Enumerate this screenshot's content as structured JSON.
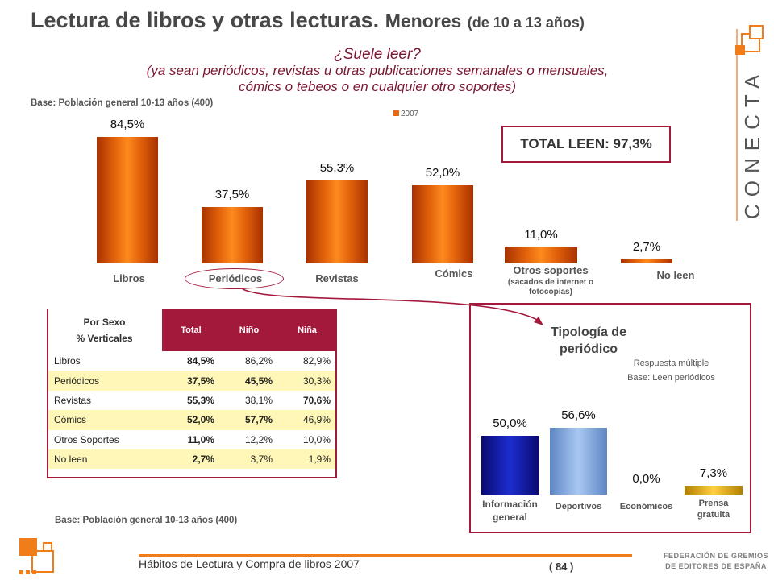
{
  "title": {
    "main": "Lectura de libros y otras lecturas.",
    "sub": "Menores",
    "age": "(de 10 a 13 años)"
  },
  "question": {
    "line1": "¿Suele leer?",
    "line2": "(ya sean periódicos, revistas u otras publicaciones semanales o mensuales,",
    "line3": "cómics o tebeos o en cualquier otro soportes)"
  },
  "base_top": "Base: Población general 10-13 años (400)",
  "base_bottom": "Base: Población general 10-13 años (400)",
  "legend": "2007",
  "total_leen": "TOTAL LEEN: 97,3%",
  "brand": "CONECTA",
  "chart_data": [
    {
      "type": "bar",
      "series": [
        {
          "name": "2007",
          "values": [
            84.5,
            37.5,
            55.3,
            52.0,
            11.0,
            2.7
          ]
        }
      ],
      "categories": [
        "Libros",
        "Periódicos",
        "Revistas",
        "Cómics",
        "Otros soportes",
        "No leen"
      ],
      "category_notes": {
        "Otros soportes": "(sacados de internet o fotocopias)"
      },
      "value_labels": [
        "84,5%",
        "37,5%",
        "55,3%",
        "52,0%",
        "11,0%",
        "2,7%"
      ],
      "ylim": [
        0,
        100
      ],
      "grid": false,
      "legend_position": "top-right",
      "colors": {
        "Libros": "#e0600a",
        "Periódicos": "#e0600a",
        "Revistas": "#e0600a",
        "Cómics": "#e0600a",
        "Otros soportes": "#e0600a",
        "No leen": "#e0600a"
      }
    },
    {
      "type": "bar",
      "title": "Tipología de periódico",
      "notes": [
        "Respuesta múltiple",
        "Base: Leen periódicos"
      ],
      "categories": [
        "Información general",
        "Deportivos",
        "Económicos",
        "Prensa gratuita"
      ],
      "series": [
        {
          "values": [
            50.0,
            56.6,
            0.0,
            7.3
          ]
        }
      ],
      "value_labels": [
        "50,0%",
        "56,6%",
        "0,0%",
        "7,3%"
      ],
      "ylim": [
        0,
        100
      ],
      "colors": [
        "#1020b0",
        "#8ab4e8",
        "#b8b8b8",
        "#f0c020"
      ]
    },
    {
      "type": "table",
      "header": {
        "row_title": "Por Sexo",
        "row_subtitle": "% Verticales",
        "columns": [
          "Total",
          "Niño",
          "Niña"
        ]
      },
      "rows": [
        {
          "label": "Libros",
          "cells": [
            "84,5%",
            "86,2%",
            "82,9%"
          ]
        },
        {
          "label": "Periódicos",
          "cells": [
            "37,5%",
            "45,5%",
            "30,3%"
          ]
        },
        {
          "label": "Revistas",
          "cells": [
            "55,3%",
            "38,1%",
            "70,6%"
          ]
        },
        {
          "label": "Cómics",
          "cells": [
            "52,0%",
            "57,7%",
            "46,9%"
          ]
        },
        {
          "label": "Otros Soportes",
          "cells": [
            "11,0%",
            "12,2%",
            "10,0%"
          ]
        },
        {
          "label": "No leen",
          "cells": [
            "2,7%",
            "3,7%",
            "1,9%"
          ]
        }
      ]
    }
  ],
  "footer": {
    "text": "Hábitos de Lectura y Compra de libros 2007",
    "page": "( 84 )",
    "federation_line1": "FEDERACIÓN DE GREMIOS",
    "federation_line2": "DE EDITORES DE ESPAÑA"
  },
  "colors": {
    "accent": "#a3193c",
    "bar": "#e0600a",
    "table_alt": "#fff7b8",
    "footer_line": "#f07d1a"
  }
}
